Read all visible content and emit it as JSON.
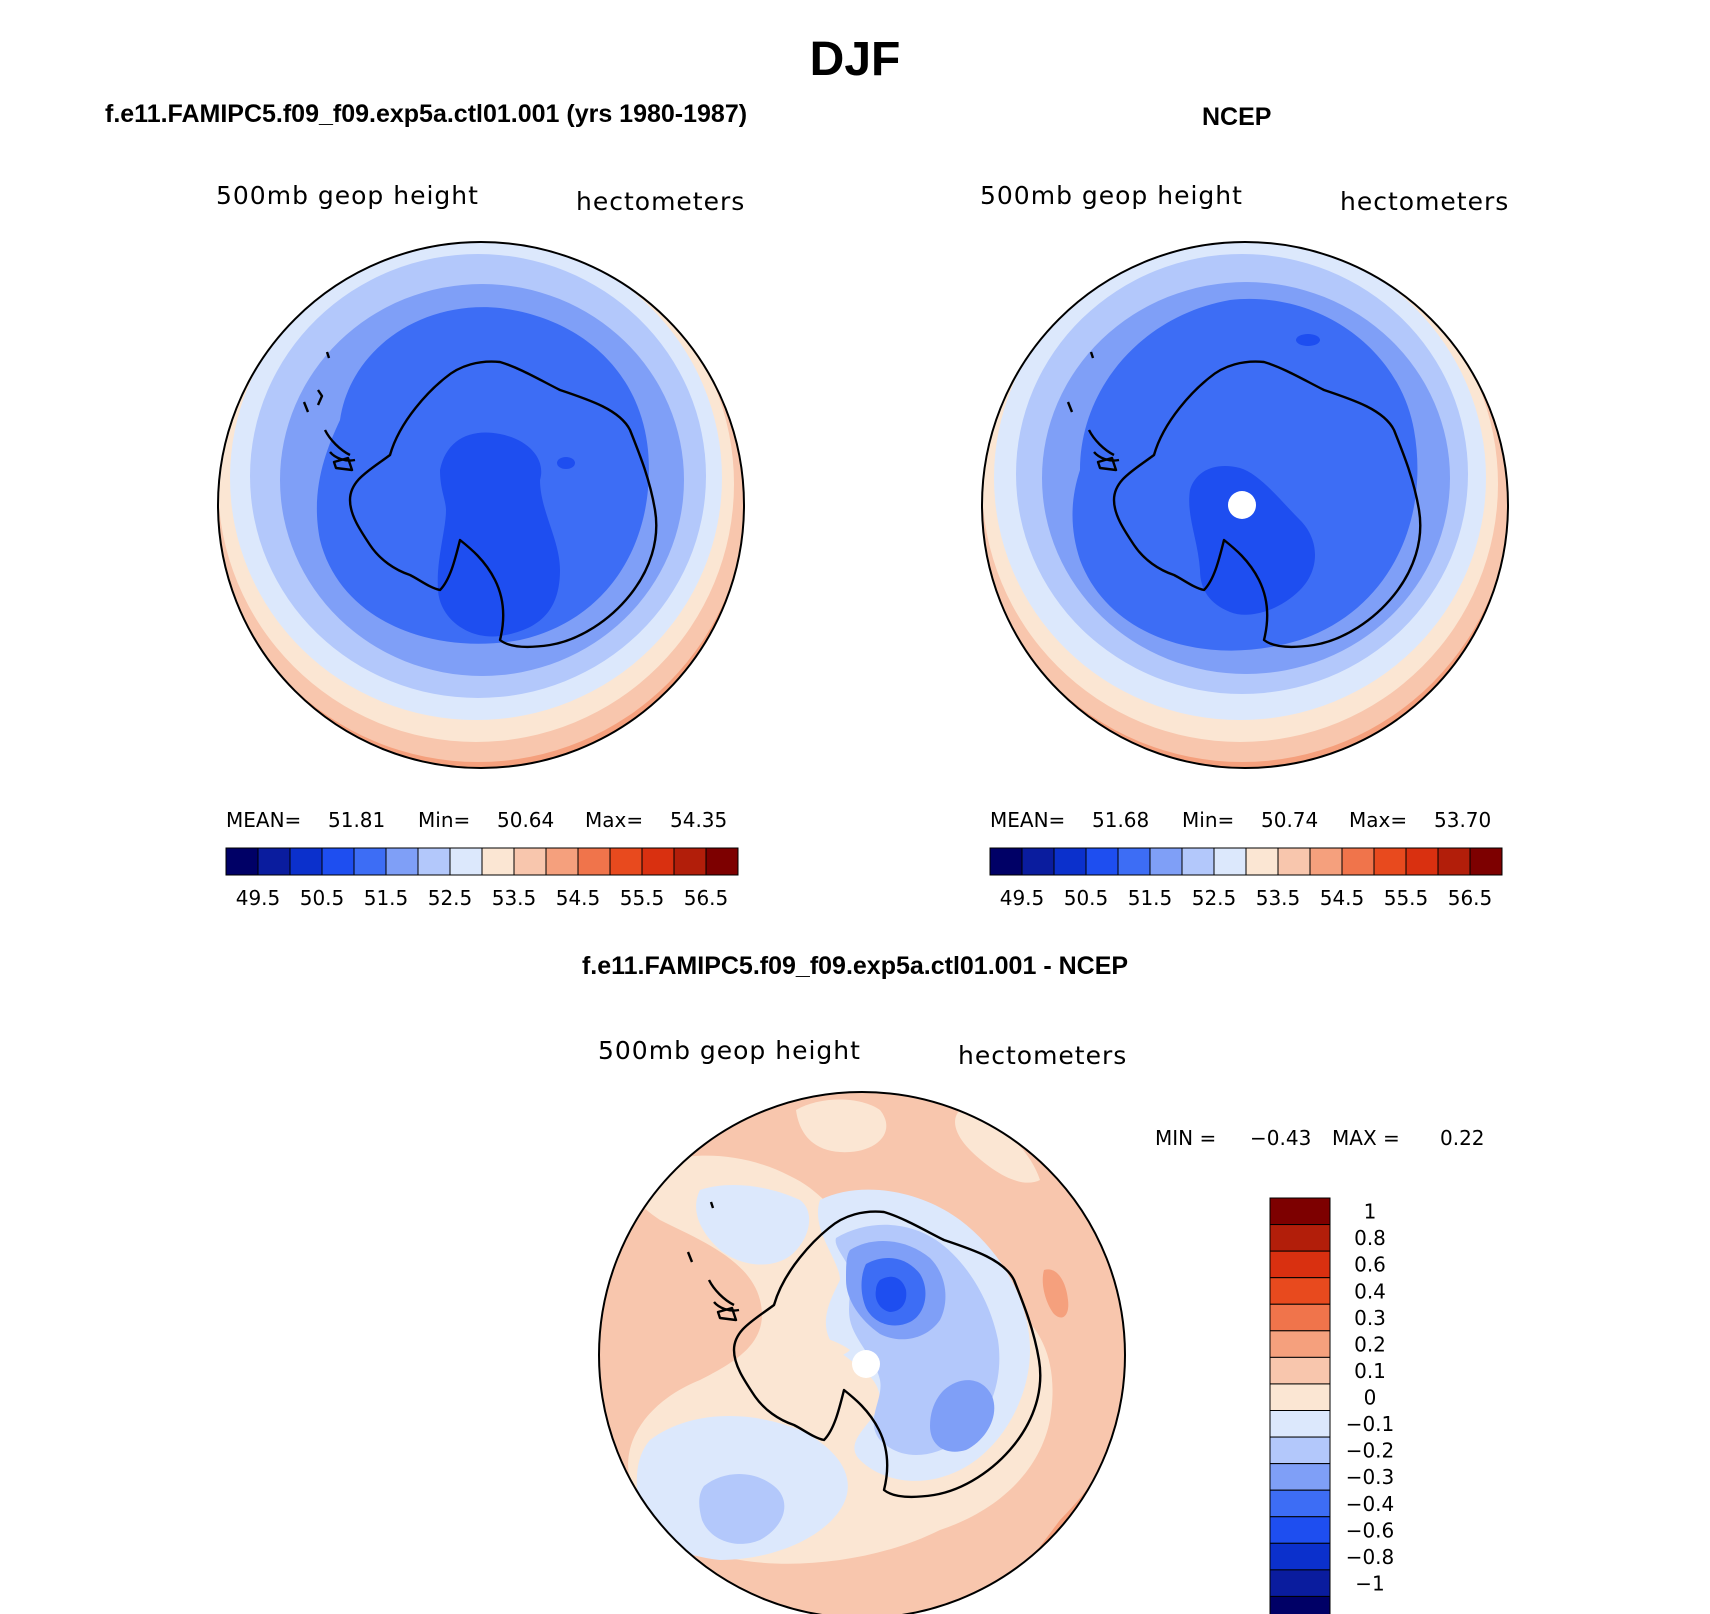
{
  "figure_title": "DJF",
  "panels": {
    "left": {
      "title": "f.e11.FAMIPC5.f09_f09.exp5a.ctl01.001 (yrs 1980-1987)",
      "field_label": "500mb geop height",
      "units_label": "hectometers",
      "stats": {
        "mean_label": "MEAN=",
        "mean": "51.81",
        "min_label": "Min=",
        "min": "50.64",
        "max_label": "Max=",
        "max": "54.35"
      }
    },
    "right": {
      "title": "NCEP",
      "field_label": "500mb geop height",
      "units_label": "hectometers",
      "stats": {
        "mean_label": "MEAN=",
        "mean": "51.68",
        "min_label": "Min=",
        "min": "50.74",
        "max_label": "Max=",
        "max": "53.70"
      }
    },
    "diff": {
      "title": "f.e11.FAMIPC5.f09_f09.exp5a.ctl01.001 - NCEP",
      "field_label": "500mb geop height",
      "units_label": "hectometers",
      "stats": {
        "min_label": "MIN =",
        "min": "−0.43",
        "max_label": "MAX =",
        "max": "0.22"
      }
    }
  },
  "colorbar_abs": {
    "ticks": [
      "49.5",
      "50.5",
      "51.5",
      "52.5",
      "53.5",
      "54.5",
      "55.5",
      "56.5"
    ],
    "colors": [
      "#000066",
      "#0a1c9e",
      "#0b30cc",
      "#1e4ef0",
      "#3d6df5",
      "#7f9ff7",
      "#b3c8fb",
      "#dce8fc",
      "#fbe6d3",
      "#f8c6ad",
      "#f5a07d",
      "#f0744b",
      "#e84a1e",
      "#d93010",
      "#b21e0a",
      "#7d0000"
    ]
  },
  "colorbar_diff": {
    "ticks": [
      "1",
      "0.8",
      "0.6",
      "0.4",
      "0.3",
      "0.2",
      "0.1",
      "0",
      "−0.1",
      "−0.2",
      "−0.3",
      "−0.4",
      "−0.6",
      "−0.8",
      "−1"
    ],
    "colors": [
      "#7d0000",
      "#b21e0a",
      "#d93010",
      "#e84a1e",
      "#f0744b",
      "#f5a07d",
      "#f8c6ad",
      "#fbe6d3",
      "#dce8fc",
      "#b3c8fb",
      "#7f9ff7",
      "#3d6df5",
      "#1e4ef0",
      "#0b30cc",
      "#0a1c9e",
      "#000066"
    ]
  }
}
